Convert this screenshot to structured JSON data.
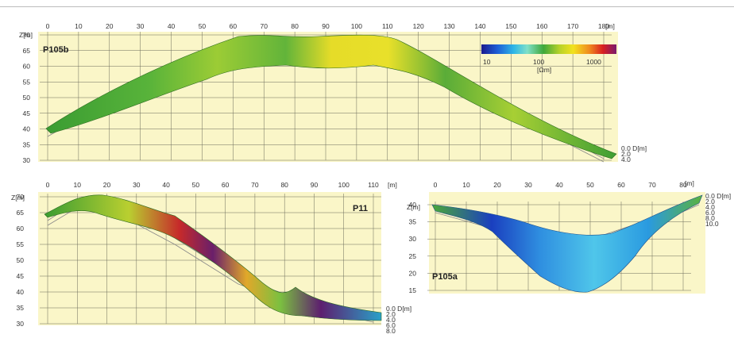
{
  "colorbar": {
    "ticks": [
      "10",
      "100",
      "1000"
    ],
    "unit": "[Ωm]",
    "colors": [
      "#1a1a8f",
      "#1e5fd6",
      "#2fb7e6",
      "#7fe0c8",
      "#3fa83a",
      "#b8d22a",
      "#f2e21e",
      "#f08a1e",
      "#d82020",
      "#7a1a6e"
    ]
  },
  "profiles": [
    {
      "name": "P105b",
      "x_unit": "[m]",
      "x_ticks": [
        "0",
        "10",
        "20",
        "30",
        "40",
        "50",
        "60",
        "70",
        "80",
        "90",
        "100",
        "110",
        "120",
        "130",
        "140",
        "150",
        "160",
        "170",
        "180"
      ],
      "y_ticks": [
        "70",
        "65",
        "60",
        "55",
        "50",
        "45",
        "40",
        "35",
        "30"
      ],
      "y_title": "Z[m]",
      "depth_labels": [
        "0.0 D[m]",
        "2.0",
        "4.0"
      ]
    },
    {
      "name": "P11",
      "x_unit": "[m]",
      "x_ticks": [
        "0",
        "10",
        "20",
        "30",
        "40",
        "50",
        "60",
        "70",
        "80",
        "90",
        "100",
        "110"
      ],
      "y_ticks": [
        "70",
        "65",
        "60",
        "55",
        "50",
        "45",
        "40",
        "35",
        "30"
      ],
      "y_title": "Z[m]",
      "depth_labels": [
        "0.0 D[m]",
        "2.0",
        "4.0",
        "6.0",
        "8.0"
      ]
    },
    {
      "name": "P105a",
      "x_unit": "[m]",
      "x_ticks": [
        "0",
        "10",
        "20",
        "30",
        "40",
        "50",
        "60",
        "70",
        "80"
      ],
      "y_ticks": [
        "40",
        "35",
        "30",
        "25",
        "20",
        "15"
      ],
      "y_title": "Z[m]",
      "depth_labels": [
        "0.0 D[m]",
        "2.0",
        "4.0",
        "6.0",
        "8.0",
        "10.0"
      ]
    }
  ]
}
